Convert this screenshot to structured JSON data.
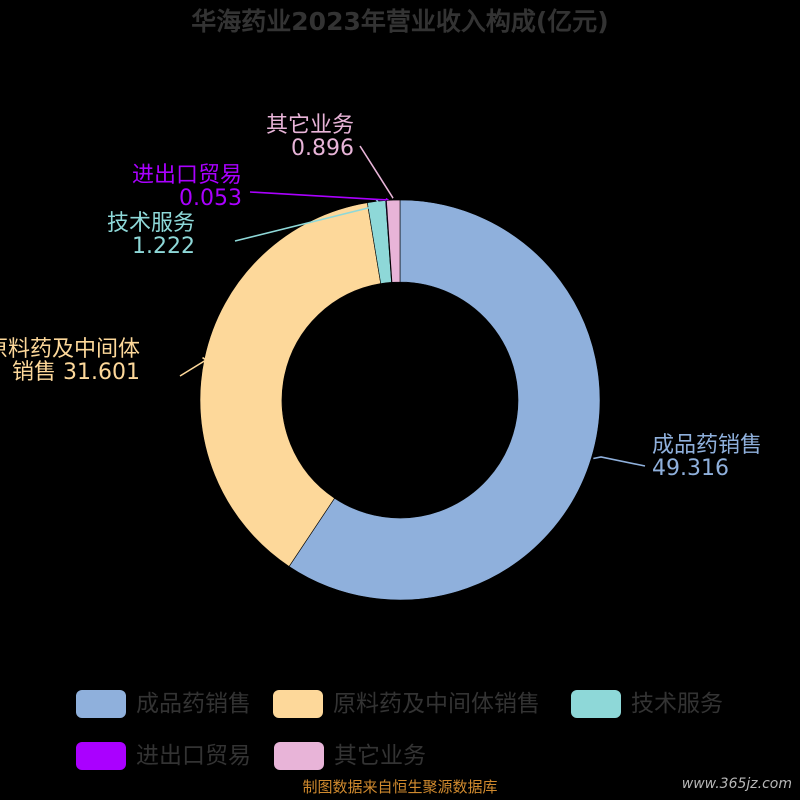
{
  "chart_data": {
    "type": "pie",
    "title": "华海药业2023年营业收入构成(亿元)",
    "series": [
      {
        "name": "成品药销售",
        "value": 49.316,
        "color": "#8fb0dc",
        "label_lines": [
          "成品药销售",
          "49.316"
        ]
      },
      {
        "name": "原料药及中间体销售",
        "value": 31.601,
        "color": "#fdd89a",
        "label_lines": [
          "原料药及中间体",
          "销售 31.601"
        ]
      },
      {
        "name": "技术服务",
        "value": 1.222,
        "color": "#8ed8d8",
        "label_lines": [
          "技术服务",
          "1.222"
        ]
      },
      {
        "name": "进出口贸易",
        "value": 0.053,
        "color": "#aa00ff",
        "label_lines": [
          "进出口贸易",
          "0.053"
        ]
      },
      {
        "name": "其它业务",
        "value": 0.896,
        "color": "#e8b4d8",
        "label_lines": [
          "其它业务",
          "0.896"
        ]
      }
    ],
    "legend_position": "bottom"
  },
  "footer": {
    "source": "制图数据来自恒生聚源数据库",
    "watermark": "www.365jz.com"
  }
}
